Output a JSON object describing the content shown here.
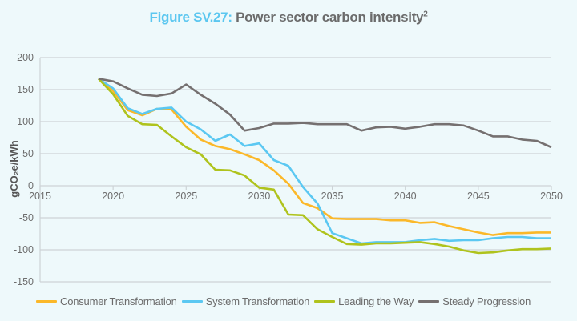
{
  "title": {
    "prefix": "Figure SV.27:",
    "text": "Power sector carbon intensity",
    "superscript": "2"
  },
  "chart_data": {
    "type": "line",
    "title": "Figure SV.27: Power sector carbon intensity²",
    "xlabel": "",
    "ylabel": "gCO₂e/kWh",
    "xlim": [
      2015,
      2050
    ],
    "ylim": [
      -150,
      200
    ],
    "xticks": [
      2015,
      2020,
      2025,
      2030,
      2035,
      2040,
      2045,
      2050
    ],
    "yticks": [
      200,
      150,
      100,
      50,
      0,
      -50,
      -100,
      -150
    ],
    "grid": true,
    "legend_position": "bottom",
    "x": [
      2019,
      2020,
      2021,
      2022,
      2023,
      2024,
      2025,
      2026,
      2027,
      2028,
      2029,
      2030,
      2031,
      2032,
      2033,
      2034,
      2035,
      2036,
      2037,
      2038,
      2039,
      2040,
      2041,
      2042,
      2043,
      2044,
      2045,
      2046,
      2047,
      2048,
      2049,
      2050
    ],
    "series": [
      {
        "name": "Consumer Transformation",
        "color": "#fbb829",
        "values": [
          167,
          148,
          118,
          110,
          120,
          119,
          92,
          72,
          62,
          57,
          49,
          40,
          24,
          3,
          -27,
          -35,
          -51,
          -52,
          -52,
          -52,
          -54,
          -54,
          -58,
          -57,
          -63,
          -68,
          -73,
          -77,
          -74,
          -74,
          -73,
          -73
        ]
      },
      {
        "name": "System Transformation",
        "color": "#5bc8f2",
        "values": [
          167,
          152,
          121,
          112,
          120,
          122,
          100,
          88,
          70,
          80,
          62,
          66,
          40,
          31,
          -2,
          -28,
          -74,
          -82,
          -90,
          -88,
          -88,
          -88,
          -85,
          -83,
          -86,
          -85,
          -85,
          -82,
          -80,
          -80,
          -82,
          -82
        ]
      },
      {
        "name": "Leading the Way",
        "color": "#afc31d",
        "values": [
          167,
          143,
          109,
          96,
          95,
          77,
          60,
          49,
          25,
          24,
          16,
          -3,
          -6,
          -45,
          -46,
          -68,
          -80,
          -91,
          -92,
          -90,
          -90,
          -89,
          -88,
          -91,
          -95,
          -101,
          -105,
          -104,
          -101,
          -99,
          -99,
          -98
        ]
      },
      {
        "name": "Steady Progression",
        "color": "#757070",
        "values": [
          167,
          163,
          152,
          142,
          140,
          144,
          158,
          142,
          128,
          111,
          86,
          90,
          97,
          97,
          98,
          96,
          96,
          96,
          86,
          91,
          92,
          89,
          92,
          96,
          96,
          94,
          86,
          77,
          77,
          72,
          70,
          60
        ]
      }
    ]
  }
}
